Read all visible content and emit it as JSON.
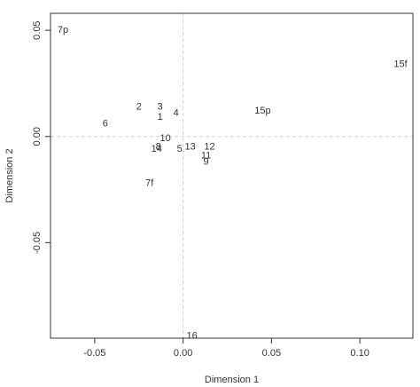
{
  "chart_data": {
    "type": "scatter",
    "title": "",
    "xlabel": "Dimension 1",
    "ylabel": "Dimension 2",
    "xlim": [
      -0.075,
      0.13
    ],
    "ylim": [
      -0.095,
      0.058
    ],
    "xticks": [
      -0.05,
      0.0,
      0.05,
      0.1
    ],
    "xtick_labels": [
      "-0.05",
      "0.00",
      "0.05",
      "0.10"
    ],
    "yticks": [
      -0.05,
      0.0,
      0.05
    ],
    "ytick_labels": [
      "-0.05",
      "0.00",
      "0.05"
    ],
    "reference_lines": {
      "x": 0,
      "y": 0,
      "style": "dashed",
      "color": "#d0d0d0"
    },
    "grid": false,
    "points": [
      {
        "label": "7p",
        "x": -0.068,
        "y": 0.05
      },
      {
        "label": "15f",
        "x": 0.123,
        "y": 0.034
      },
      {
        "label": "2",
        "x": -0.025,
        "y": 0.014
      },
      {
        "label": "3",
        "x": -0.013,
        "y": 0.014
      },
      {
        "label": "1",
        "x": -0.013,
        "y": 0.009
      },
      {
        "label": "4",
        "x": -0.004,
        "y": 0.011
      },
      {
        "label": "15p",
        "x": 0.045,
        "y": 0.012
      },
      {
        "label": "6",
        "x": -0.044,
        "y": 0.006
      },
      {
        "label": "10",
        "x": -0.01,
        "y": -0.001
      },
      {
        "label": "8",
        "x": -0.014,
        "y": -0.005
      },
      {
        "label": "14",
        "x": -0.015,
        "y": -0.006
      },
      {
        "label": "5",
        "x": -0.002,
        "y": -0.006
      },
      {
        "label": "13",
        "x": 0.004,
        "y": -0.005
      },
      {
        "label": "12",
        "x": 0.015,
        "y": -0.005
      },
      {
        "label": "11",
        "x": 0.013,
        "y": -0.009
      },
      {
        "label": "9",
        "x": 0.013,
        "y": -0.012
      },
      {
        "label": "7f",
        "x": -0.019,
        "y": -0.022
      },
      {
        "label": "16",
        "x": 0.005,
        "y": -0.094
      }
    ],
    "colors": {
      "text": "#333333",
      "frame": "#333333",
      "reference_line": "#d0d0d0"
    }
  }
}
